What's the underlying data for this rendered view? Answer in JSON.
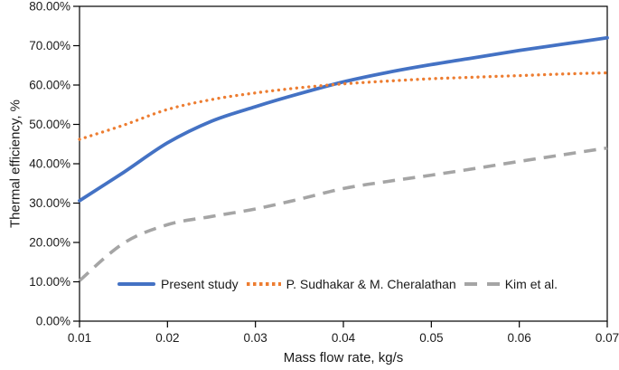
{
  "chart_data": {
    "type": "line",
    "title": "",
    "xlabel": "Mass flow rate, kg/s",
    "ylabel": "Thermal efficiency, %",
    "xlim": [
      0.01,
      0.07
    ],
    "ylim": [
      0,
      80
    ],
    "grid": false,
    "frame": true,
    "frame_color": "#000000",
    "legend_position": "bottom-inside",
    "xticks": [
      0.01,
      0.02,
      0.03,
      0.04,
      0.05,
      0.06,
      0.07
    ],
    "xtick_labels": [
      "0.01",
      "0.02",
      "0.03",
      "0.04",
      "0.05",
      "0.06",
      "0.07"
    ],
    "yticks": [
      0,
      10,
      20,
      30,
      40,
      50,
      60,
      70,
      80
    ],
    "ytick_labels": [
      "0.00%",
      "10.00%",
      "20.00%",
      "30.00%",
      "40.00%",
      "50.00%",
      "60.00%",
      "70.00%",
      "80.00%"
    ],
    "x": [
      0.01,
      0.015,
      0.02,
      0.025,
      0.03,
      0.035,
      0.04,
      0.045,
      0.05,
      0.055,
      0.06,
      0.065,
      0.07
    ],
    "y_unit": "percent",
    "series": [
      {
        "name": "Present study",
        "style": "solid",
        "color": "#4472C4",
        "values": [
          30.6,
          37.8,
          45.3,
          50.8,
          54.5,
          57.8,
          60.8,
          63.2,
          65.2,
          67.0,
          68.8,
          70.4,
          72.0
        ]
      },
      {
        "name": "P. Sudhakar & M. Cheralathan",
        "style": "dotted",
        "color": "#ED7D31",
        "values": [
          46.2,
          49.8,
          53.8,
          56.3,
          58.0,
          59.3,
          60.3,
          61.0,
          61.6,
          62.0,
          62.4,
          62.8,
          63.1
        ]
      },
      {
        "name": "Kim et al.",
        "style": "dashed",
        "color": "#A5A5A5",
        "values": [
          10.3,
          19.8,
          24.5,
          26.6,
          28.5,
          31.0,
          33.7,
          35.5,
          37.1,
          38.8,
          40.6,
          42.3,
          44.0
        ]
      }
    ]
  }
}
